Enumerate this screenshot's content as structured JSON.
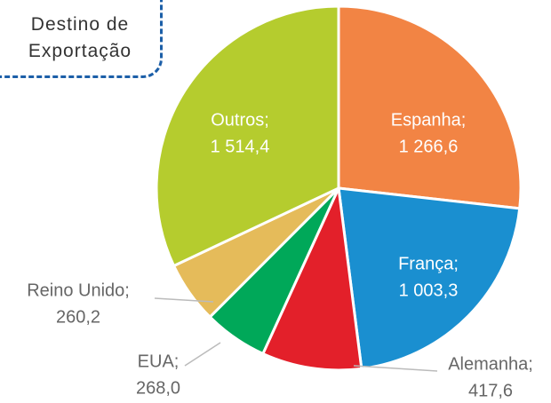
{
  "chart_data": {
    "type": "pie",
    "title": "Destino de Exportação",
    "categories": [
      "Espanha;",
      "França;",
      "Alemanha;",
      "EUA;",
      "Reino Unido;",
      "Outros;"
    ],
    "values": [
      1266.6,
      1003.3,
      417.6,
      268.0,
      260.2,
      1514.4
    ],
    "value_labels": [
      "1 266,6",
      "1 003,3",
      "417,6",
      "268,0",
      "260,2",
      "1 514,4"
    ],
    "colors": [
      "#f28444",
      "#1a8fd0",
      "#e3202a",
      "#00a859",
      "#e5bb5a",
      "#b5cc2e"
    ]
  }
}
